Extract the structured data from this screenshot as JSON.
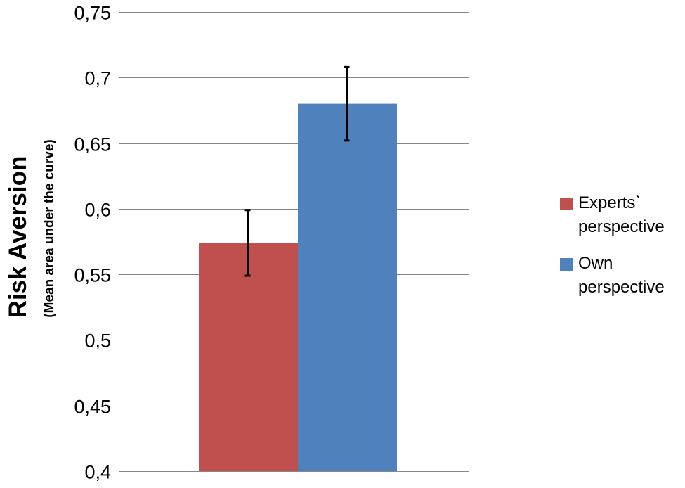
{
  "chart_data": {
    "type": "bar",
    "title": "",
    "ylabel": "Risk Aversion",
    "ylabel_sub": "(Mean area under the curve)",
    "xlabel": "",
    "ylim": [
      0.4,
      0.75
    ],
    "yticks": [
      "0,75",
      "0,7",
      "0,65",
      "0,6",
      "0,55",
      "0,5",
      "0,45",
      "0,4"
    ],
    "ytick_values": [
      0.75,
      0.7,
      0.65,
      0.6,
      0.55,
      0.5,
      0.45,
      0.4
    ],
    "grid": true,
    "legend_position": "right",
    "categories": [
      ""
    ],
    "series": [
      {
        "name": "Experts` perspective",
        "values": [
          0.574
        ],
        "error_low": [
          0.549
        ],
        "error_high": [
          0.599
        ],
        "color": "#C0504D"
      },
      {
        "name": "Own perspective",
        "values": [
          0.68
        ],
        "error_low": [
          0.652
        ],
        "error_high": [
          0.708
        ],
        "color": "#4F81BD"
      }
    ]
  },
  "legend": {
    "items": [
      {
        "label": "Experts` perspective",
        "color": "#C0504D"
      },
      {
        "label": "Own perspective",
        "color": "#4F81BD"
      }
    ]
  },
  "colors": {
    "gridline": "#868686",
    "axis": "#868686",
    "errorbar": "#000000"
  }
}
